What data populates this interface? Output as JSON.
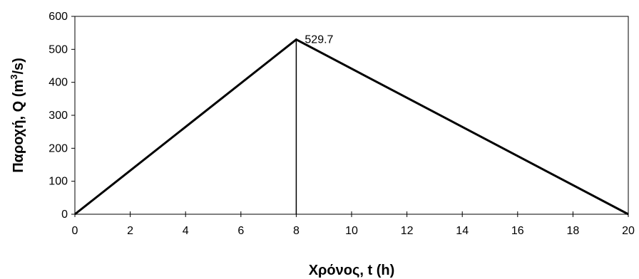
{
  "chart_data": {
    "type": "line",
    "x": [
      0,
      8,
      20
    ],
    "series": [
      {
        "values": [
          0,
          529.7,
          0
        ],
        "color": "#000000"
      }
    ],
    "peak_marker": {
      "x": 8,
      "y_from": 0,
      "y_to": 529.7
    },
    "annotation": {
      "text": "529.7",
      "x": 8,
      "y": 529.7
    },
    "xlabel": "Χρόνος, t (h)",
    "ylabel_main": "Παροχή, Q (m",
    "ylabel_sup": "3",
    "ylabel_end": "/s)",
    "xlim": [
      0,
      20
    ],
    "ylim": [
      0,
      600
    ],
    "xticks": [
      0,
      2,
      4,
      6,
      8,
      10,
      12,
      14,
      16,
      18,
      20
    ],
    "yticks": [
      0,
      100,
      200,
      300,
      400,
      500,
      600
    ],
    "grid": false,
    "legend": "none"
  }
}
